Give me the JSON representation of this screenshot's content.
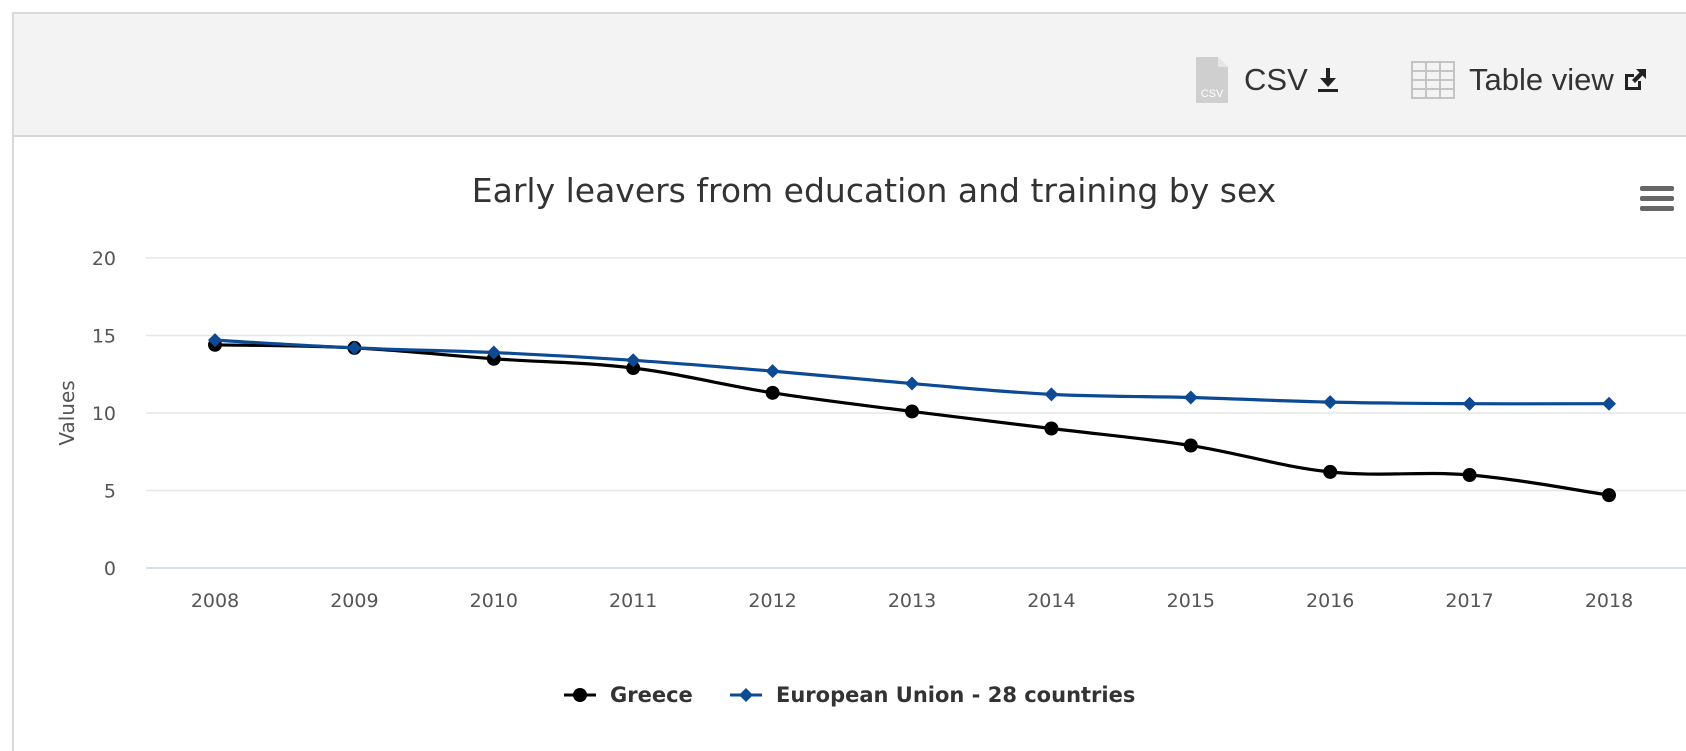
{
  "toolbar": {
    "csv_label": "CSV",
    "table_view_label": "Table view"
  },
  "icons": {
    "csv_file": "csv-file-icon",
    "csv_download": "download-icon",
    "table_grid": "table-grid-icon",
    "external_link": "external-link-icon",
    "chart_menu": "hamburger-menu-icon"
  },
  "colors": {
    "greece": "#000000",
    "eu28": "#0d4a94",
    "gridline": "#e6e6e6",
    "axis_text": "#555555",
    "toolbar_bg": "#f3f3f3"
  },
  "chart_data": {
    "type": "line",
    "title": "Early leavers from education and training by sex",
    "xlabel": "",
    "ylabel": "Values",
    "categories": [
      "2008",
      "2009",
      "2010",
      "2011",
      "2012",
      "2013",
      "2014",
      "2015",
      "2016",
      "2017",
      "2018"
    ],
    "ylim": [
      0,
      20
    ],
    "yticks": [
      0,
      5,
      10,
      15,
      20
    ],
    "grid": true,
    "legend_position": "bottom-center",
    "series": [
      {
        "name": "Greece",
        "marker": "circle",
        "values": [
          14.4,
          14.2,
          13.5,
          12.9,
          11.3,
          10.1,
          9.0,
          7.9,
          6.2,
          6.0,
          4.7
        ]
      },
      {
        "name": "European Union - 28 countries",
        "marker": "diamond",
        "values": [
          14.7,
          14.2,
          13.9,
          13.4,
          12.7,
          11.9,
          11.2,
          11.0,
          10.7,
          10.6,
          10.6
        ]
      }
    ]
  }
}
